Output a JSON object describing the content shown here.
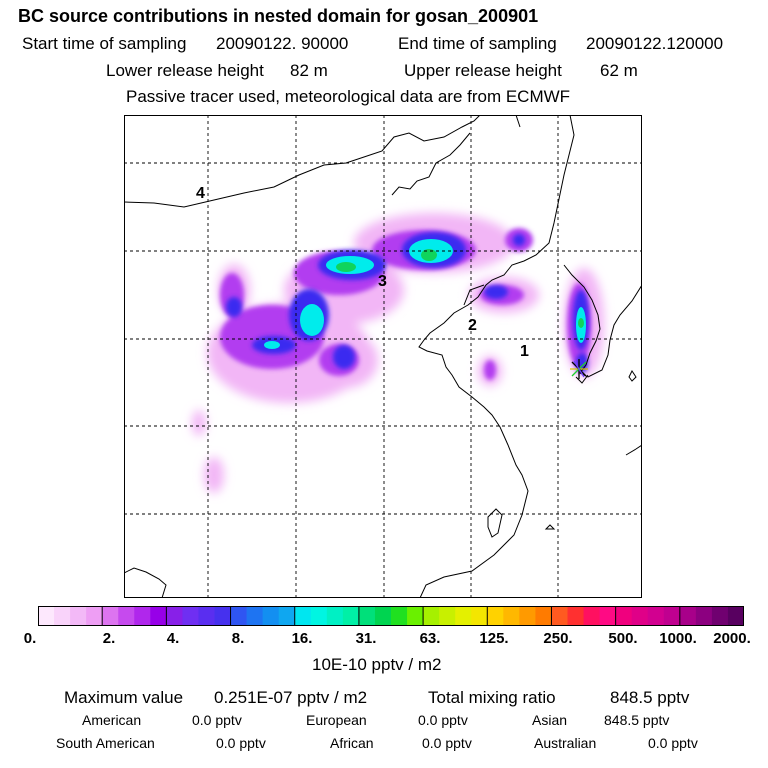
{
  "title": "BC  source contributions in nested domain for gosan_200901",
  "header": {
    "start_label": "Start time of sampling",
    "start_value": "20090122. 90000",
    "end_label": "End time of sampling",
    "end_value": "20090122.120000",
    "lower_label": "Lower release height",
    "lower_value": "82 m",
    "upper_label": "Upper release height",
    "upper_value": "62 m",
    "note": "Passive tracer used, meteorological data are from ECMWF"
  },
  "map": {
    "region_labels": [
      "1",
      "2",
      "3",
      "4"
    ],
    "receptor": "gosan"
  },
  "colorbar": {
    "ticks": [
      "0.",
      "2.",
      "4.",
      "8.",
      "16.",
      "31.",
      "63.",
      "125.",
      "250.",
      "500.",
      "1000.",
      "2000."
    ],
    "colors": [
      "#fde8fd",
      "#f9d3fa",
      "#f3b9f7",
      "#ee9ef4",
      "#dd74f0",
      "#c64aee",
      "#b027ec",
      "#9700e8",
      "#8820e8",
      "#6f2ff2",
      "#5a2ef0",
      "#4631ee",
      "#2f55f2",
      "#1e74f2",
      "#138ff1",
      "#0fa7f0",
      "#00e6f0",
      "#00f5e2",
      "#00f0c4",
      "#00f0a6",
      "#00e07a",
      "#00d450",
      "#20e020",
      "#6af000",
      "#a6f000",
      "#c8f000",
      "#e4f000",
      "#f4e600",
      "#ffd200",
      "#ffb800",
      "#ff9a00",
      "#ff7b00",
      "#ff5a20",
      "#ff3030",
      "#ff1060",
      "#ff0a84",
      "#f0007e",
      "#e00088",
      "#d20090",
      "#c00090",
      "#a8008a",
      "#8c0080",
      "#700070",
      "#580060"
    ],
    "unit": "10E-10 pptv / m2"
  },
  "stats": {
    "max_label": "Maximum value",
    "max_value": "0.251E-07 pptv / m2",
    "total_label": "Total mixing ratio",
    "total_value": "848.5 pptv",
    "rows": [
      [
        {
          "label": "American",
          "value": "0.0 pptv"
        },
        {
          "label": "European",
          "value": "0.0 pptv"
        },
        {
          "label": "Asian",
          "value": "848.5 pptv"
        }
      ],
      [
        {
          "label": "South American",
          "value": "0.0 pptv"
        },
        {
          "label": "African",
          "value": "0.0 pptv"
        },
        {
          "label": "Australian",
          "value": "0.0 pptv"
        }
      ]
    ]
  }
}
